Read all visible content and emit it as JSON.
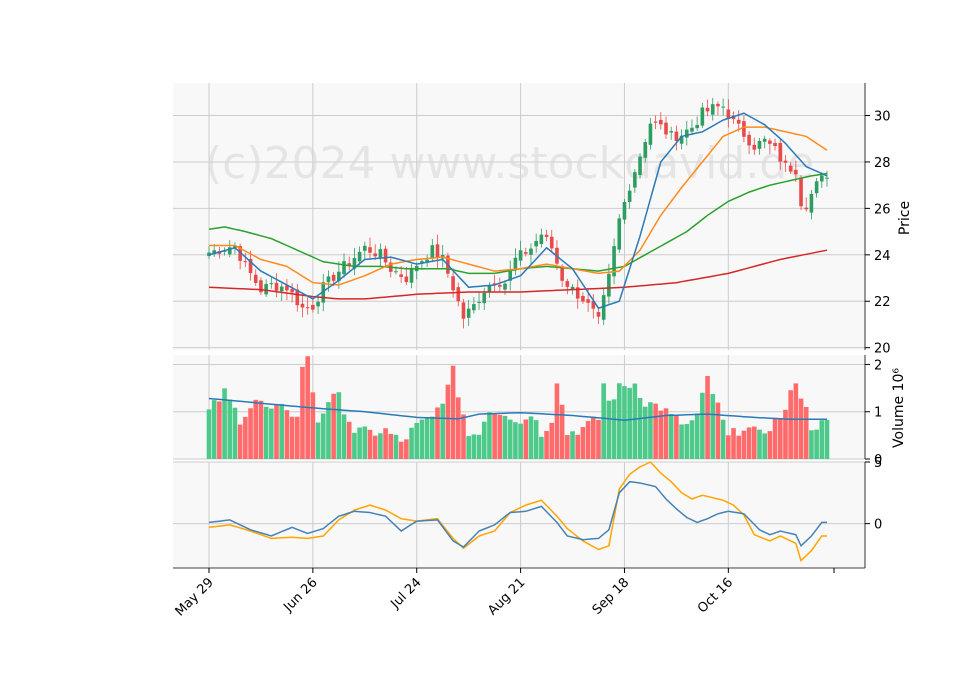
{
  "watermark": "(c)2024 www.stockdavid.de",
  "colors": {
    "panel_bg": "#f8f8f8",
    "grid": "#cccccc",
    "up": "#2e9d62",
    "down": "#e84a4a",
    "vol_up": "#4dc98a",
    "vol_down": "#ff6b6b",
    "ma_blue": "#2a7ab8",
    "ma_orange": "#ff8a1e",
    "ma_green": "#2ca02c",
    "ma_red": "#d62728",
    "osc_blue": "#4682b4",
    "osc_orange": "#ffa500"
  },
  "chart_data": {
    "type": "candlestick",
    "date_labels": [
      "May 29",
      "Jun 26",
      "Jul 24",
      "Aug 21",
      "Sep 18",
      "Oct 16"
    ],
    "date_label_index": [
      0,
      20,
      40,
      60,
      80,
      100
    ],
    "n_days": 120,
    "price_axis": {
      "label": "Price",
      "ticks": [
        "20",
        "22",
        "24",
        "26",
        "28",
        "30"
      ],
      "range": [
        19.9,
        31.4
      ]
    },
    "volume_axis": {
      "label": "Volume  10⁶",
      "ticks": [
        "0",
        "1",
        "2"
      ],
      "range": [
        0,
        2.2
      ]
    },
    "osc_axis": {
      "ticks": [
        "0",
        "5"
      ],
      "range": [
        -3.6,
        5.0
      ]
    },
    "price_keys": [
      [
        0,
        24.1
      ],
      [
        3,
        24.3
      ],
      [
        5,
        24.4
      ],
      [
        7,
        23.5
      ],
      [
        10,
        22.5
      ],
      [
        12,
        22.7
      ],
      [
        15,
        22.6
      ],
      [
        18,
        21.7
      ],
      [
        20,
        21.8
      ],
      [
        22,
        22.6
      ],
      [
        25,
        23.3
      ],
      [
        28,
        23.9
      ],
      [
        30,
        24.3
      ],
      [
        33,
        24.0
      ],
      [
        35,
        23.4
      ],
      [
        38,
        23.0
      ],
      [
        40,
        23.6
      ],
      [
        43,
        24.2
      ],
      [
        45,
        23.8
      ],
      [
        47,
        22.6
      ],
      [
        49,
        21.3
      ],
      [
        51,
        21.8
      ],
      [
        53,
        22.5
      ],
      [
        55,
        22.9
      ],
      [
        57,
        22.8
      ],
      [
        59,
        23.8
      ],
      [
        62,
        24.3
      ],
      [
        64,
        24.9
      ],
      [
        66,
        24.3
      ],
      [
        68,
        23.0
      ],
      [
        70,
        22.5
      ],
      [
        72,
        22.1
      ],
      [
        74,
        21.5
      ],
      [
        75,
        21.1
      ],
      [
        77,
        23.0
      ],
      [
        79,
        25.5
      ],
      [
        81,
        27.0
      ],
      [
        83,
        28.3
      ],
      [
        85,
        29.7
      ],
      [
        87,
        29.5
      ],
      [
        89,
        29.1
      ],
      [
        91,
        29.2
      ],
      [
        93,
        29.5
      ],
      [
        95,
        30.1
      ],
      [
        97,
        30.3
      ],
      [
        99,
        30.4
      ],
      [
        101,
        29.7
      ],
      [
        103,
        29.2
      ],
      [
        105,
        28.7
      ],
      [
        107,
        28.9
      ],
      [
        109,
        28.5
      ],
      [
        111,
        27.8
      ],
      [
        113,
        27.7
      ],
      [
        114,
        26.3
      ],
      [
        115,
        26.2
      ],
      [
        117,
        27.0
      ],
      [
        119,
        27.5
      ]
    ],
    "ma_keys": {
      "blue": [
        [
          0,
          24.0
        ],
        [
          5,
          24.3
        ],
        [
          10,
          23.3
        ],
        [
          15,
          22.7
        ],
        [
          20,
          22.1
        ],
        [
          25,
          22.9
        ],
        [
          30,
          23.8
        ],
        [
          35,
          23.9
        ],
        [
          40,
          23.6
        ],
        [
          45,
          23.8
        ],
        [
          50,
          22.6
        ],
        [
          55,
          22.7
        ],
        [
          60,
          23.1
        ],
        [
          65,
          24.3
        ],
        [
          70,
          23.4
        ],
        [
          75,
          21.7
        ],
        [
          79,
          22.0
        ],
        [
          83,
          24.8
        ],
        [
          87,
          28.0
        ],
        [
          91,
          29.1
        ],
        [
          95,
          29.3
        ],
        [
          99,
          29.8
        ],
        [
          103,
          30.1
        ],
        [
          107,
          29.6
        ],
        [
          111,
          28.8
        ],
        [
          115,
          27.8
        ],
        [
          119,
          27.4
        ]
      ],
      "orange": [
        [
          0,
          24.4
        ],
        [
          5,
          24.4
        ],
        [
          10,
          23.8
        ],
        [
          15,
          23.5
        ],
        [
          20,
          22.8
        ],
        [
          25,
          22.7
        ],
        [
          30,
          23.1
        ],
        [
          35,
          23.6
        ],
        [
          40,
          23.8
        ],
        [
          45,
          23.9
        ],
        [
          50,
          23.6
        ],
        [
          55,
          23.3
        ],
        [
          60,
          23.4
        ],
        [
          65,
          23.6
        ],
        [
          70,
          23.4
        ],
        [
          75,
          23.2
        ],
        [
          79,
          23.3
        ],
        [
          83,
          24.2
        ],
        [
          87,
          25.7
        ],
        [
          91,
          26.9
        ],
        [
          95,
          28.0
        ],
        [
          99,
          29.1
        ],
        [
          103,
          29.5
        ],
        [
          107,
          29.5
        ],
        [
          111,
          29.3
        ],
        [
          115,
          29.1
        ],
        [
          119,
          28.5
        ]
      ],
      "green": [
        [
          0,
          25.1
        ],
        [
          3,
          25.2
        ],
        [
          7,
          25.0
        ],
        [
          12,
          24.7
        ],
        [
          18,
          24.1
        ],
        [
          22,
          23.7
        ],
        [
          28,
          23.5
        ],
        [
          33,
          23.5
        ],
        [
          38,
          23.4
        ],
        [
          42,
          23.4
        ],
        [
          46,
          23.4
        ],
        [
          50,
          23.2
        ],
        [
          55,
          23.2
        ],
        [
          60,
          23.4
        ],
        [
          65,
          23.5
        ],
        [
          70,
          23.4
        ],
        [
          75,
          23.3
        ],
        [
          80,
          23.5
        ],
        [
          84,
          24.0
        ],
        [
          88,
          24.5
        ],
        [
          92,
          25.0
        ],
        [
          96,
          25.7
        ],
        [
          100,
          26.3
        ],
        [
          104,
          26.7
        ],
        [
          108,
          27.0
        ],
        [
          112,
          27.2
        ],
        [
          116,
          27.4
        ],
        [
          119,
          27.5
        ]
      ],
      "red": [
        [
          0,
          22.6
        ],
        [
          10,
          22.5
        ],
        [
          20,
          22.2
        ],
        [
          25,
          22.1
        ],
        [
          30,
          22.1
        ],
        [
          40,
          22.3
        ],
        [
          50,
          22.4
        ],
        [
          60,
          22.4
        ],
        [
          70,
          22.5
        ],
        [
          80,
          22.6
        ],
        [
          90,
          22.8
        ],
        [
          100,
          23.2
        ],
        [
          110,
          23.8
        ],
        [
          119,
          24.2
        ]
      ]
    },
    "volume_keys": [
      [
        0,
        1.0
      ],
      [
        3,
        1.4
      ],
      [
        6,
        0.85
      ],
      [
        9,
        1.25
      ],
      [
        12,
        1.0
      ],
      [
        15,
        1.1
      ],
      [
        17,
        0.85
      ],
      [
        18,
        2.0
      ],
      [
        19,
        2.1
      ],
      [
        21,
        0.8
      ],
      [
        23,
        1.25
      ],
      [
        25,
        1.3
      ],
      [
        28,
        0.6
      ],
      [
        31,
        0.55
      ],
      [
        34,
        0.6
      ],
      [
        37,
        0.35
      ],
      [
        40,
        0.7
      ],
      [
        43,
        0.85
      ],
      [
        46,
        1.5
      ],
      [
        47,
        1.85
      ],
      [
        48,
        1.4
      ],
      [
        50,
        0.5
      ],
      [
        52,
        0.6
      ],
      [
        54,
        1.05
      ],
      [
        57,
        1.0
      ],
      [
        60,
        0.75
      ],
      [
        62,
        1.0
      ],
      [
        64,
        0.55
      ],
      [
        66,
        0.85
      ],
      [
        67,
        1.7
      ],
      [
        69,
        0.55
      ],
      [
        72,
        0.65
      ],
      [
        75,
        0.85
      ],
      [
        76,
        1.6
      ],
      [
        77,
        1.2
      ],
      [
        79,
        1.5
      ],
      [
        82,
        1.6
      ],
      [
        84,
        1.2
      ],
      [
        87,
        1.1
      ],
      [
        89,
        0.9
      ],
      [
        92,
        0.7
      ],
      [
        94,
        0.9
      ],
      [
        96,
        1.7
      ],
      [
        98,
        1.1
      ],
      [
        100,
        0.45
      ],
      [
        103,
        0.7
      ],
      [
        106,
        0.5
      ],
      [
        109,
        0.8
      ],
      [
        111,
        1.0
      ],
      [
        113,
        1.7
      ],
      [
        114,
        1.35
      ],
      [
        116,
        0.7
      ],
      [
        119,
        0.75
      ]
    ],
    "volume_avg_keys": [
      [
        0,
        1.28
      ],
      [
        10,
        1.18
      ],
      [
        20,
        1.08
      ],
      [
        30,
        1.0
      ],
      [
        40,
        0.88
      ],
      [
        48,
        0.85
      ],
      [
        52,
        0.95
      ],
      [
        60,
        0.98
      ],
      [
        70,
        0.92
      ],
      [
        80,
        0.82
      ],
      [
        88,
        0.92
      ],
      [
        96,
        0.95
      ],
      [
        105,
        0.88
      ],
      [
        112,
        0.84
      ],
      [
        119,
        0.84
      ]
    ],
    "osc_blue_keys": [
      [
        0,
        0.1
      ],
      [
        4,
        0.3
      ],
      [
        8,
        -0.5
      ],
      [
        12,
        -1.0
      ],
      [
        16,
        -0.3
      ],
      [
        19,
        -0.8
      ],
      [
        22,
        -0.4
      ],
      [
        25,
        0.6
      ],
      [
        28,
        1.0
      ],
      [
        31,
        0.9
      ],
      [
        34,
        0.6
      ],
      [
        37,
        -0.6
      ],
      [
        40,
        0.2
      ],
      [
        44,
        0.3
      ],
      [
        47,
        -1.4
      ],
      [
        49,
        -1.9
      ],
      [
        52,
        -0.6
      ],
      [
        55,
        -0.1
      ],
      [
        58,
        0.9
      ],
      [
        61,
        1.0
      ],
      [
        64,
        1.4
      ],
      [
        67,
        0.1
      ],
      [
        69,
        -1.0
      ],
      [
        72,
        -1.3
      ],
      [
        75,
        -1.2
      ],
      [
        77,
        -0.5
      ],
      [
        79,
        2.5
      ],
      [
        81,
        3.4
      ],
      [
        83,
        3.3
      ],
      [
        86,
        3.0
      ],
      [
        88,
        2.0
      ],
      [
        90,
        1.2
      ],
      [
        92,
        0.5
      ],
      [
        94,
        0.1
      ],
      [
        96,
        0.4
      ],
      [
        98,
        0.8
      ],
      [
        100,
        1.0
      ],
      [
        103,
        0.8
      ],
      [
        106,
        -0.5
      ],
      [
        108,
        -0.9
      ],
      [
        110,
        -0.6
      ],
      [
        113,
        -0.9
      ],
      [
        114,
        -1.8
      ],
      [
        116,
        -1.0
      ],
      [
        118,
        0.1
      ],
      [
        119,
        0.1
      ]
    ],
    "osc_orange_keys": [
      [
        0,
        -0.3
      ],
      [
        4,
        -0.1
      ],
      [
        8,
        -0.6
      ],
      [
        12,
        -1.2
      ],
      [
        16,
        -1.1
      ],
      [
        19,
        -1.2
      ],
      [
        22,
        -1.0
      ],
      [
        25,
        0.3
      ],
      [
        28,
        1.1
      ],
      [
        31,
        1.5
      ],
      [
        34,
        1.1
      ],
      [
        37,
        0.4
      ],
      [
        40,
        0.2
      ],
      [
        44,
        0.4
      ],
      [
        47,
        -1.2
      ],
      [
        49,
        -2.0
      ],
      [
        52,
        -1.0
      ],
      [
        55,
        -0.6
      ],
      [
        58,
        0.9
      ],
      [
        61,
        1.5
      ],
      [
        64,
        1.9
      ],
      [
        67,
        0.6
      ],
      [
        69,
        -0.4
      ],
      [
        72,
        -1.4
      ],
      [
        75,
        -2.1
      ],
      [
        77,
        -1.8
      ],
      [
        79,
        2.8
      ],
      [
        81,
        4.0
      ],
      [
        83,
        4.6
      ],
      [
        85,
        5.0
      ],
      [
        87,
        4.1
      ],
      [
        89,
        3.4
      ],
      [
        91,
        2.5
      ],
      [
        93,
        2.0
      ],
      [
        95,
        2.3
      ],
      [
        97,
        2.1
      ],
      [
        99,
        1.9
      ],
      [
        101,
        1.5
      ],
      [
        103,
        0.7
      ],
      [
        105,
        -0.9
      ],
      [
        108,
        -1.4
      ],
      [
        110,
        -1.0
      ],
      [
        113,
        -1.6
      ],
      [
        114,
        -3.0
      ],
      [
        116,
        -2.2
      ],
      [
        118,
        -1.0
      ],
      [
        119,
        -1.0
      ]
    ]
  }
}
